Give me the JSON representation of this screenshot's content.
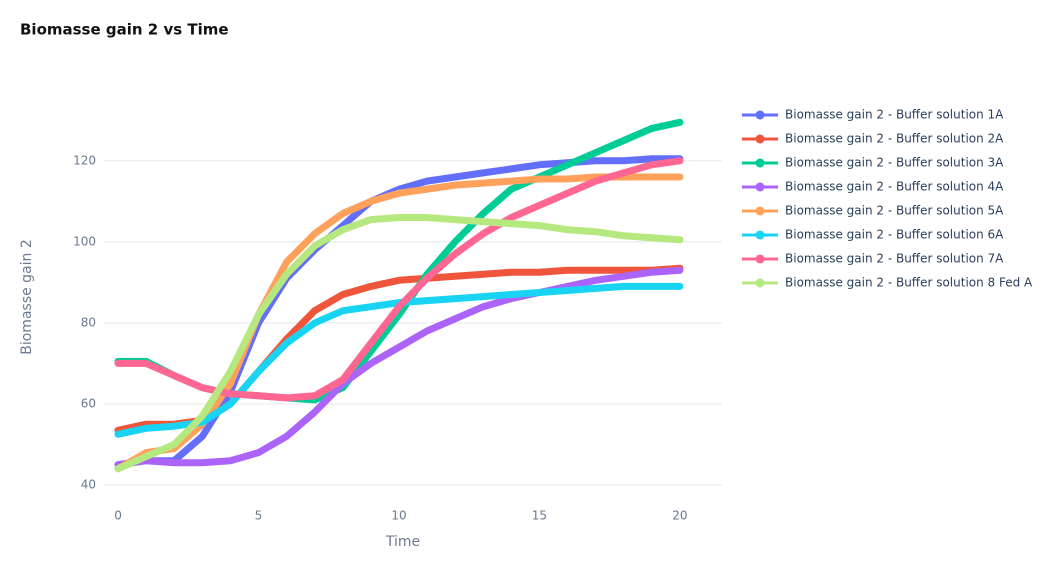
{
  "chart_data": {
    "type": "line",
    "title": "Biomasse gain 2 vs Time",
    "x_label": "Time",
    "y_label": "Biomasse gain 2",
    "x": [
      0,
      1,
      2,
      3,
      4,
      5,
      6,
      7,
      8,
      9,
      10,
      11,
      12,
      13,
      14,
      15,
      16,
      17,
      18,
      19,
      20
    ],
    "xlim": [
      -0.5,
      21.5
    ],
    "xticks": [
      0,
      5,
      10,
      15,
      20
    ],
    "ylim": [
      36.3,
      135
    ],
    "yticks": [
      40,
      60,
      80,
      100,
      120
    ],
    "grid": true,
    "legend": "right",
    "series": [
      {
        "name": "Biomasse gain 2 - Buffer solution 1A",
        "color": "#636efa",
        "values": [
          45,
          46,
          46,
          52,
          63,
          80,
          91,
          98,
          104,
          110,
          113,
          115,
          116,
          117,
          118,
          119,
          119.5,
          120,
          120,
          120.5,
          120.5
        ]
      },
      {
        "name": "Biomasse gain 2 - Buffer solution 2A",
        "color": "#EF553B",
        "values": [
          53.5,
          55,
          55,
          56,
          60,
          68,
          76,
          83,
          87,
          89,
          90.5,
          91,
          91.5,
          92,
          92.5,
          92.5,
          93,
          93,
          93,
          93,
          93.5
        ]
      },
      {
        "name": "Biomasse gain 2 - Buffer solution 3A",
        "color": "#00cc96",
        "values": [
          70.5,
          70.5,
          67,
          64,
          62.5,
          62,
          61.5,
          61,
          64,
          73,
          82,
          92,
          100,
          107,
          113,
          116,
          119,
          122,
          125,
          128,
          129.5
        ]
      },
      {
        "name": "Biomasse gain 2 - Buffer solution 4A",
        "color": "#ab63fa",
        "values": [
          45,
          46,
          45.5,
          45.5,
          46,
          48,
          52,
          58,
          65,
          70,
          74,
          78,
          81,
          84,
          86,
          87.5,
          89,
          90.5,
          91.5,
          92.5,
          93
        ]
      },
      {
        "name": "Biomasse gain 2 - Buffer solution 5A",
        "color": "#FFA15A",
        "values": [
          44,
          48,
          49,
          55,
          65,
          82,
          95,
          102,
          107,
          110,
          112,
          113,
          114,
          114.5,
          115,
          115.5,
          115.5,
          116,
          116,
          116,
          116
        ]
      },
      {
        "name": "Biomasse gain 2 - Buffer solution 6A",
        "color": "#19d3f3",
        "values": [
          52.5,
          54,
          54.5,
          55.5,
          60,
          68,
          75,
          80,
          83,
          84,
          85,
          85.5,
          86,
          86.5,
          87,
          87.5,
          88,
          88.5,
          89,
          89,
          89
        ]
      },
      {
        "name": "Biomasse gain 2 - Buffer solution 7A",
        "color": "#FF6692",
        "values": [
          70,
          70,
          67,
          64,
          62.5,
          62,
          61.5,
          62,
          66,
          75,
          84,
          91,
          97,
          102,
          106,
          109,
          112,
          115,
          117,
          119,
          120
        ]
      },
      {
        "name": "Biomasse gain 2 - Buffer solution 8 Fed A",
        "color": "#B6E880",
        "values": [
          44,
          47,
          50,
          57,
          68,
          82,
          92,
          99,
          103,
          105.5,
          106,
          106,
          105.5,
          105,
          104.5,
          104,
          103,
          102.5,
          101.5,
          101,
          100.5
        ]
      }
    ]
  }
}
